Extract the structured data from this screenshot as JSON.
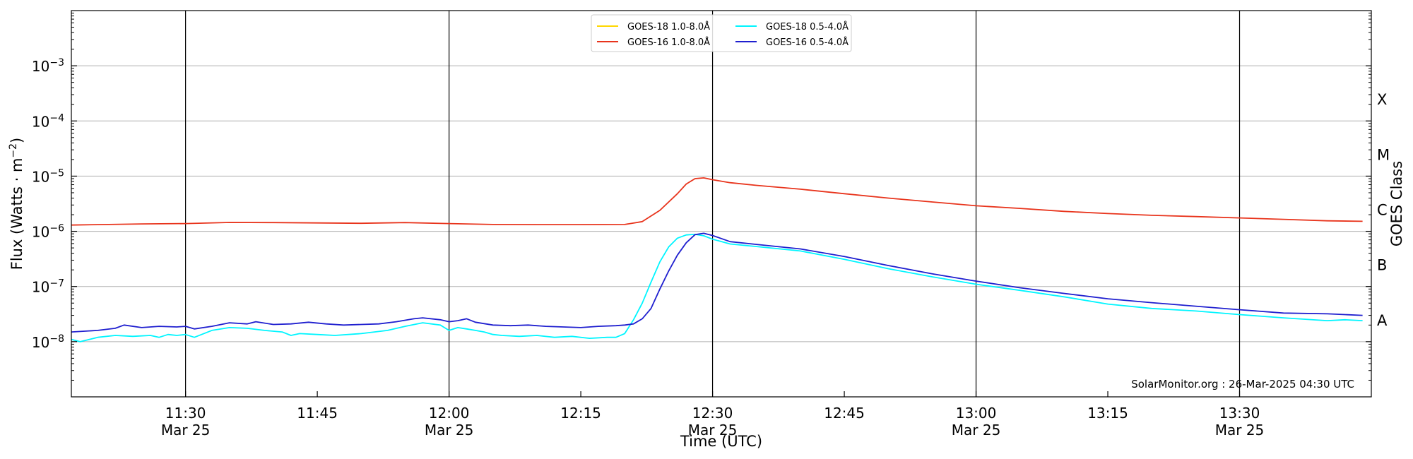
{
  "chart_data": {
    "type": "line",
    "xlabel": "Time (UTC)",
    "ylabel": "Flux (Watts · m",
    "ylabel_superscript": "−2",
    "ylabel_close": ")",
    "right_axis_label": "GOES Class",
    "y_scale": "log",
    "xlim": [
      "11:17",
      "13:45"
    ],
    "ylim": [
      1e-09,
      0.01
    ],
    "grid": "horizontal at y decades, vertical at half hours",
    "legend_placement": "top-center",
    "credit": "SolarMonitor.org : 26-Mar-2025 04:30 UTC",
    "x_ticks": [
      {
        "time": "11:30",
        "label": "11:30",
        "date": "Mar 25"
      },
      {
        "time": "11:45",
        "label": "11:45",
        "date": ""
      },
      {
        "time": "12:00",
        "label": "12:00",
        "date": "Mar 25"
      },
      {
        "time": "12:15",
        "label": "12:15",
        "date": ""
      },
      {
        "time": "12:30",
        "label": "12:30",
        "date": "Mar 25"
      },
      {
        "time": "12:45",
        "label": "12:45",
        "date": ""
      },
      {
        "time": "13:00",
        "label": "13:00",
        "date": "Mar 25"
      },
      {
        "time": "13:15",
        "label": "13:15",
        "date": ""
      },
      {
        "time": "13:30",
        "label": "13:30",
        "date": "Mar 25"
      }
    ],
    "y_ticks": [
      {
        "exp": -8,
        "base": "10",
        "power": "−8"
      },
      {
        "exp": -7,
        "base": "10",
        "power": "−7"
      },
      {
        "exp": -6,
        "base": "10",
        "power": "−6"
      },
      {
        "exp": -5,
        "base": "10",
        "power": "−5"
      },
      {
        "exp": -4,
        "base": "10",
        "power": "−4"
      },
      {
        "exp": -3,
        "base": "10",
        "power": "−3"
      }
    ],
    "goes_classes": [
      {
        "label": "A",
        "flux": 2.5e-08
      },
      {
        "label": "B",
        "flux": 2.5e-07
      },
      {
        "label": "C",
        "flux": 2.5e-06
      },
      {
        "label": "M",
        "flux": 2.5e-05
      },
      {
        "label": "X",
        "flux": 0.00025
      }
    ],
    "series": [
      {
        "name": "GOES-18 1.0-8.0Å",
        "color": "#ffd700",
        "legend_col": 0,
        "legend_row": 0,
        "x": [],
        "y": []
      },
      {
        "name": "GOES-16 1.0-8.0Å",
        "color": "#e8341c",
        "legend_col": 0,
        "legend_row": 1,
        "x": [
          "11:17",
          "11:20",
          "11:25",
          "11:30",
          "11:35",
          "11:40",
          "11:45",
          "11:50",
          "11:55",
          "12:00",
          "12:05",
          "12:10",
          "12:15",
          "12:20",
          "12:22",
          "12:24",
          "12:26",
          "12:27",
          "12:28",
          "12:29",
          "12:30",
          "12:32",
          "12:35",
          "12:40",
          "12:45",
          "12:50",
          "12:55",
          "13:00",
          "13:05",
          "13:10",
          "13:15",
          "13:20",
          "13:25",
          "13:30",
          "13:35",
          "13:40",
          "13:44"
        ],
        "y": [
          1.3e-06,
          1.32e-06,
          1.36e-06,
          1.38e-06,
          1.45e-06,
          1.44e-06,
          1.42e-06,
          1.4e-06,
          1.44e-06,
          1.38e-06,
          1.33e-06,
          1.32e-06,
          1.32e-06,
          1.33e-06,
          1.5e-06,
          2.4e-06,
          4.8e-06,
          7.2e-06,
          9e-06,
          9.3e-06,
          8.6e-06,
          7.6e-06,
          6.8e-06,
          5.8e-06,
          4.8e-06,
          4e-06,
          3.4e-06,
          2.9e-06,
          2.6e-06,
          2.3e-06,
          2.1e-06,
          1.95e-06,
          1.85e-06,
          1.75e-06,
          1.65e-06,
          1.55e-06,
          1.52e-06
        ]
      },
      {
        "name": "GOES-18 0.5-4.0Å",
        "color": "#00f5ff",
        "legend_col": 1,
        "legend_row": 0,
        "x": [
          "11:17",
          "11:18",
          "11:20",
          "11:22",
          "11:24",
          "11:26",
          "11:27",
          "11:28",
          "11:29",
          "11:30",
          "11:31",
          "11:33",
          "11:35",
          "11:37",
          "11:39",
          "11:41",
          "11:42",
          "11:43",
          "11:45",
          "11:47",
          "11:50",
          "11:53",
          "11:55",
          "11:57",
          "11:59",
          "12:00",
          "12:01",
          "12:02",
          "12:03",
          "12:04",
          "12:05",
          "12:06",
          "12:08",
          "12:10",
          "12:12",
          "12:14",
          "12:16",
          "12:18",
          "12:19",
          "12:20",
          "12:21",
          "12:22",
          "12:23",
          "12:24",
          "12:25",
          "12:26",
          "12:27",
          "12:28",
          "12:29",
          "12:30",
          "12:32",
          "12:35",
          "12:40",
          "12:45",
          "12:50",
          "12:55",
          "13:00",
          "13:05",
          "13:10",
          "13:15",
          "13:20",
          "13:25",
          "13:30",
          "13:35",
          "13:40",
          "13:42",
          "13:44"
        ],
        "y": [
          1.1e-08,
          1e-08,
          1.2e-08,
          1.3e-08,
          1.25e-08,
          1.3e-08,
          1.2e-08,
          1.35e-08,
          1.3e-08,
          1.35e-08,
          1.2e-08,
          1.6e-08,
          1.8e-08,
          1.75e-08,
          1.6e-08,
          1.5e-08,
          1.3e-08,
          1.4e-08,
          1.35e-08,
          1.3e-08,
          1.4e-08,
          1.6e-08,
          1.9e-08,
          2.2e-08,
          2e-08,
          1.6e-08,
          1.8e-08,
          1.7e-08,
          1.6e-08,
          1.5e-08,
          1.35e-08,
          1.3e-08,
          1.25e-08,
          1.3e-08,
          1.2e-08,
          1.25e-08,
          1.15e-08,
          1.2e-08,
          1.2e-08,
          1.4e-08,
          2.5e-08,
          5e-08,
          1.2e-07,
          2.8e-07,
          5.2e-07,
          7.5e-07,
          8.6e-07,
          8.8e-07,
          8.3e-07,
          7.2e-07,
          5.9e-07,
          5.3e-07,
          4.4e-07,
          3.1e-07,
          2.1e-07,
          1.5e-07,
          1.1e-07,
          8.5e-08,
          6.5e-08,
          4.8e-08,
          4e-08,
          3.6e-08,
          3.1e-08,
          2.7e-08,
          2.4e-08,
          2.5e-08,
          2.4e-08
        ]
      },
      {
        "name": "GOES-16 0.5-4.0Å",
        "color": "#1f1fcf",
        "legend_col": 1,
        "legend_row": 1,
        "x": [
          "11:17",
          "11:20",
          "11:22",
          "11:23",
          "11:25",
          "11:27",
          "11:29",
          "11:30",
          "11:31",
          "11:33",
          "11:35",
          "11:37",
          "11:38",
          "11:40",
          "11:42",
          "11:44",
          "11:46",
          "11:48",
          "11:50",
          "11:52",
          "11:54",
          "11:56",
          "11:57",
          "11:59",
          "12:00",
          "12:01",
          "12:02",
          "12:03",
          "12:05",
          "12:07",
          "12:09",
          "12:11",
          "12:13",
          "12:15",
          "12:17",
          "12:19",
          "12:20",
          "12:21",
          "12:22",
          "12:23",
          "12:24",
          "12:25",
          "12:26",
          "12:27",
          "12:28",
          "12:29",
          "12:30",
          "12:32",
          "12:35",
          "12:40",
          "12:45",
          "12:50",
          "12:55",
          "13:00",
          "13:05",
          "13:10",
          "13:15",
          "13:20",
          "13:25",
          "13:30",
          "13:35",
          "13:40",
          "13:42",
          "13:44"
        ],
        "y": [
          1.5e-08,
          1.6e-08,
          1.75e-08,
          2e-08,
          1.8e-08,
          1.9e-08,
          1.85e-08,
          1.9e-08,
          1.7e-08,
          1.9e-08,
          2.2e-08,
          2.1e-08,
          2.3e-08,
          2.05e-08,
          2.1e-08,
          2.25e-08,
          2.1e-08,
          2e-08,
          2.05e-08,
          2.1e-08,
          2.3e-08,
          2.6e-08,
          2.7e-08,
          2.5e-08,
          2.3e-08,
          2.4e-08,
          2.6e-08,
          2.25e-08,
          2e-08,
          1.95e-08,
          2e-08,
          1.9e-08,
          1.85e-08,
          1.8e-08,
          1.9e-08,
          1.95e-08,
          2e-08,
          2.1e-08,
          2.6e-08,
          4e-08,
          9e-08,
          1.9e-07,
          3.7e-07,
          6.2e-07,
          8.7e-07,
          9.2e-07,
          8.4e-07,
          6.5e-07,
          5.8e-07,
          4.8e-07,
          3.5e-07,
          2.4e-07,
          1.7e-07,
          1.25e-07,
          9.5e-08,
          7.5e-08,
          6e-08,
          5.1e-08,
          4.4e-08,
          3.8e-08,
          3.3e-08,
          3.2e-08,
          3.1e-08,
          3e-08
        ]
      }
    ]
  }
}
